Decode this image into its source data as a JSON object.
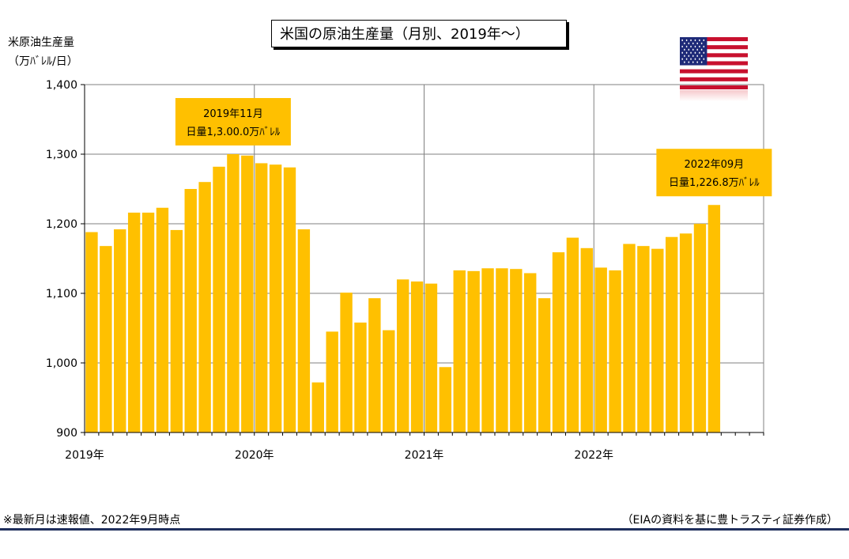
{
  "chart_data": {
    "type": "bar",
    "title": "米国の原油生産量（月別、2019年～）",
    "ylabel_line1": "米原油生産量",
    "ylabel_line2": "（万ﾊﾞﾚﾙ/日）",
    "ylim": [
      900,
      1400
    ],
    "yticks": [
      "900",
      "1,000",
      "1,100",
      "1,200",
      "1,300",
      "1,400"
    ],
    "ytick_values": [
      900,
      1000,
      1100,
      1200,
      1300,
      1400
    ],
    "year_labels": [
      "2019年",
      "2020年",
      "2021年",
      "2022年"
    ],
    "grid": true,
    "bar_color": "#FFC000",
    "months_total": 48,
    "x": [
      "2019-01",
      "2019-02",
      "2019-03",
      "2019-04",
      "2019-05",
      "2019-06",
      "2019-07",
      "2019-08",
      "2019-09",
      "2019-10",
      "2019-11",
      "2019-12",
      "2020-01",
      "2020-02",
      "2020-03",
      "2020-04",
      "2020-05",
      "2020-06",
      "2020-07",
      "2020-08",
      "2020-09",
      "2020-10",
      "2020-11",
      "2020-12",
      "2021-01",
      "2021-02",
      "2021-03",
      "2021-04",
      "2021-05",
      "2021-06",
      "2021-07",
      "2021-08",
      "2021-09",
      "2021-10",
      "2021-11",
      "2021-12",
      "2022-01",
      "2022-02",
      "2022-03",
      "2022-04",
      "2022-05",
      "2022-06",
      "2022-07",
      "2022-08",
      "2022-09"
    ],
    "values": [
      1188,
      1168,
      1192,
      1216,
      1216,
      1223,
      1191,
      1250,
      1260,
      1282,
      1300,
      1298,
      1287,
      1285,
      1281,
      1192,
      972,
      1045,
      1101,
      1058,
      1093,
      1047,
      1120,
      1117,
      1114,
      994,
      1133,
      1132,
      1136,
      1136,
      1135,
      1129,
      1093,
      1159,
      1180,
      1165,
      1137,
      1133,
      1171,
      1168,
      1164,
      1181,
      1186,
      1200,
      1227
    ],
    "annotations": [
      {
        "month_index": 10,
        "line1": "2019年11月",
        "line2": "日量1,3.00.0万ﾊﾞﾚﾙ"
      },
      {
        "month_index": 44,
        "line1": "2022年09月",
        "line2": "日量1,226.8万ﾊﾞﾚﾙ"
      }
    ]
  },
  "footer": {
    "note": "※最新月は速報値、2022年9月時点",
    "source": "（EIAの資料を基に豊トラスティ証券作成）"
  }
}
